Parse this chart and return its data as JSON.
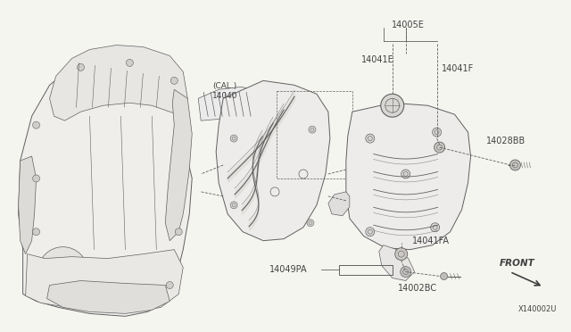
{
  "bg_color": "#f5f5f0",
  "line_color": "#606060",
  "text_color": "#404040",
  "labels": {
    "CAL_14040": "(CAL.)\n14040",
    "14005E": "14005E",
    "14041E": "14041E",
    "14041F": "14041F",
    "14028BB": "14028BB",
    "14049PA": "14049PA",
    "14041FA": "14041FA",
    "14002BC": "14002BC",
    "FRONT": "FRONT",
    "diagram_id": "X140002U"
  },
  "figsize": [
    6.4,
    3.72
  ],
  "dpi": 100
}
